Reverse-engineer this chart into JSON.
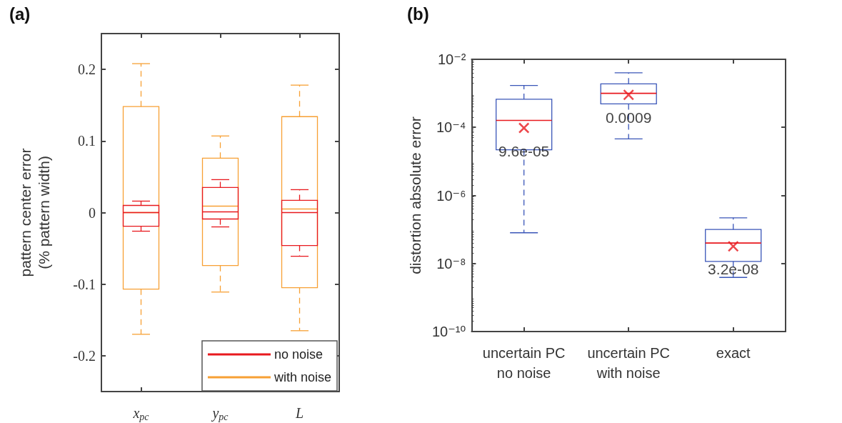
{
  "chart_data": [
    {
      "type": "box",
      "title": "(a)",
      "ylabel": "pattern center error\n(% pattern width)",
      "categories": [
        "x$_{pc}$",
        "y$_{pc}$",
        "L"
      ],
      "ylim": [
        -0.25,
        0.25
      ],
      "yticks": [
        -0.2,
        -0.1,
        0,
        0.1,
        0.2
      ],
      "grid": false,
      "legend": "bottom right",
      "line_style": "dashed",
      "series": [
        {
          "name": "no noise",
          "color": "#e8191e",
          "boxes": [
            {
              "low": -0.026,
              "q1": -0.019,
              "median": 0,
              "q3": 0.01,
              "high": 0.016
            },
            {
              "low": -0.02,
              "q1": -0.009,
              "median": 0.001,
              "q3": 0.035,
              "high": 0.046
            },
            {
              "low": -0.061,
              "q1": -0.046,
              "median": 0,
              "q3": 0.017,
              "high": 0.032
            }
          ]
        },
        {
          "name": "with noise",
          "color": "#f7a034",
          "boxes": [
            {
              "low": -0.17,
              "q1": -0.107,
              "median": 0,
              "q3": 0.148,
              "high": 0.208
            },
            {
              "low": -0.111,
              "q1": -0.074,
              "median": 0.009,
              "q3": 0.076,
              "high": 0.107
            },
            {
              "low": -0.165,
              "q1": -0.105,
              "median": 0.005,
              "q3": 0.134,
              "high": 0.178
            }
          ]
        }
      ]
    },
    {
      "type": "box",
      "title": "(b)",
      "ylabel": "distortion absolute error",
      "categories": [
        "uncertain PC\nno noise",
        "uncertain PC\nwith noise",
        "exact"
      ],
      "log": true,
      "ylim": [
        1e-10,
        0.01
      ],
      "yticks": [
        {
          "value": 1e-10,
          "label": "10⁻¹⁰"
        },
        {
          "value": 1e-08,
          "label": "10⁻⁸"
        },
        {
          "value": 1e-06,
          "label": "10⁻⁶"
        },
        {
          "value": 0.0001,
          "label": "10⁻⁴"
        },
        {
          "value": 0.01,
          "label": "10⁻²"
        }
      ],
      "grid": false,
      "line_style": "dashed",
      "marker": "cross",
      "series": [
        {
          "color": "#3a56b8",
          "boxes": [
            {
              "low": 8e-08,
              "q1": 2.2e-05,
              "median": 0.00016,
              "q3": 0.00067,
              "high": 0.0017
            },
            {
              "low": 4.6e-05,
              "q1": 0.00049,
              "median": 0.001,
              "q3": 0.0019,
              "high": 0.004
            },
            {
              "low": 3.9e-09,
              "q1": 1.15e-08,
              "median": 4e-08,
              "q3": 1e-07,
              "high": 2.2e-07
            }
          ]
        },
        {
          "type": "scatter",
          "color": "#e8191e",
          "x": [
            "uncertain PC\nno noise",
            "uncertain PC\nwith noise",
            "exact"
          ],
          "values": [
            9.6e-05,
            0.0009,
            3.2e-08
          ],
          "value_labels": [
            "9.6e-05",
            "0.0009",
            "3.2e-08"
          ]
        }
      ]
    }
  ]
}
